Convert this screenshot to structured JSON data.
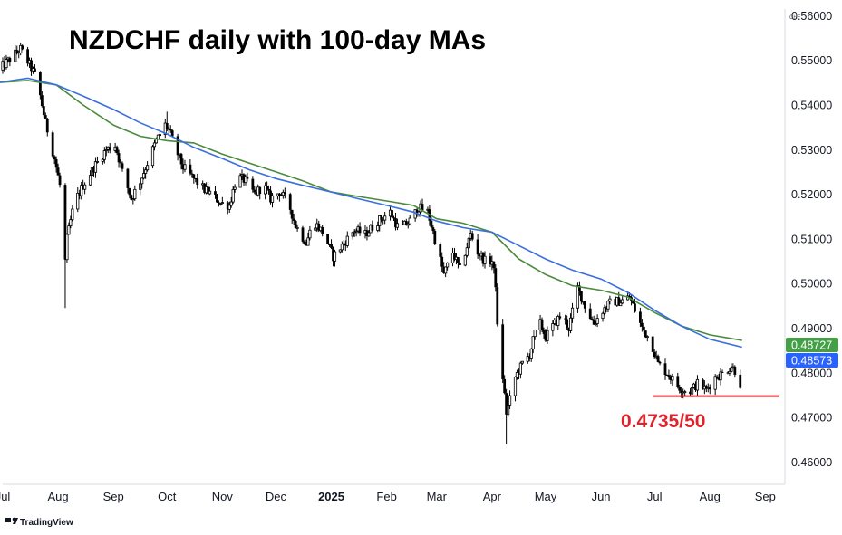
{
  "chart_data": {
    "type": "candlestick",
    "title": "NZDCHF daily with 100-day MAs",
    "price_unit": "CHF",
    "ylim": [
      0.455,
      0.5615
    ],
    "y_ticks": [
      "0.56000",
      "0.55000",
      "0.54000",
      "0.53000",
      "0.52000",
      "0.51000",
      "0.50000",
      "0.49000",
      "0.48000",
      "0.47000",
      "0.46000"
    ],
    "x_range": [
      "2024-07-01",
      "2025-09-12"
    ],
    "x_ticks": [
      {
        "date": "2024-07-01",
        "label": "Jul",
        "bold": false
      },
      {
        "date": "2024-08-01",
        "label": "Aug",
        "bold": false
      },
      {
        "date": "2024-09-01",
        "label": "Sep",
        "bold": false
      },
      {
        "date": "2024-10-01",
        "label": "Oct",
        "bold": false
      },
      {
        "date": "2024-11-01",
        "label": "Nov",
        "bold": false
      },
      {
        "date": "2024-12-01",
        "label": "Dec",
        "bold": false
      },
      {
        "date": "2025-01-01",
        "label": "2025",
        "bold": true
      },
      {
        "date": "2025-02-01",
        "label": "Feb",
        "bold": false
      },
      {
        "date": "2025-03-01",
        "label": "Mar",
        "bold": false
      },
      {
        "date": "2025-04-01",
        "label": "Apr",
        "bold": false
      },
      {
        "date": "2025-05-01",
        "label": "May",
        "bold": false
      },
      {
        "date": "2025-06-01",
        "label": "Jun",
        "bold": false
      },
      {
        "date": "2025-07-01",
        "label": "Jul",
        "bold": false
      },
      {
        "date": "2025-08-01",
        "label": "Aug",
        "bold": false
      },
      {
        "date": "2025-09-01",
        "label": "Sep",
        "bold": false
      }
    ],
    "price_path": [
      [
        "2024-06-28",
        0.5475
      ],
      [
        "2024-07-08",
        0.5515
      ],
      [
        "2024-07-11",
        0.5525
      ],
      [
        "2024-07-16",
        0.549
      ],
      [
        "2024-07-20",
        0.546
      ],
      [
        "2024-07-25",
        0.536
      ],
      [
        "2024-07-30",
        0.528
      ],
      [
        "2024-08-02",
        0.522
      ],
      [
        "2024-08-05",
        0.505
      ],
      [
        "2024-08-06",
        0.51
      ],
      [
        "2024-08-10",
        0.518
      ],
      [
        "2024-08-15",
        0.522
      ],
      [
        "2024-08-21",
        0.526
      ],
      [
        "2024-08-28",
        0.53
      ],
      [
        "2024-09-02",
        0.531
      ],
      [
        "2024-09-06",
        0.525
      ],
      [
        "2024-09-11",
        0.519
      ],
      [
        "2024-09-16",
        0.523
      ],
      [
        "2024-09-20",
        0.527
      ],
      [
        "2024-09-25",
        0.532
      ],
      [
        "2024-09-30",
        0.5355
      ],
      [
        "2024-10-02",
        0.5345
      ],
      [
        "2024-10-05",
        0.531
      ],
      [
        "2024-10-10",
        0.526
      ],
      [
        "2024-10-17",
        0.523
      ],
      [
        "2024-10-22",
        0.521
      ],
      [
        "2024-10-26",
        0.52
      ],
      [
        "2024-10-31",
        0.518
      ],
      [
        "2024-11-05",
        0.5175
      ],
      [
        "2024-11-09",
        0.524
      ],
      [
        "2024-11-14",
        0.523
      ],
      [
        "2024-11-19",
        0.52
      ],
      [
        "2024-11-24",
        0.522
      ],
      [
        "2024-11-28",
        0.519
      ],
      [
        "2024-12-03",
        0.5205
      ],
      [
        "2024-12-08",
        0.518
      ],
      [
        "2024-12-12",
        0.513
      ],
      [
        "2024-12-18",
        0.509
      ],
      [
        "2024-12-22",
        0.514
      ],
      [
        "2024-12-28",
        0.511
      ],
      [
        "2025-01-02",
        0.506
      ],
      [
        "2025-01-08",
        0.509
      ],
      [
        "2025-01-14",
        0.512
      ],
      [
        "2025-01-20",
        0.511
      ],
      [
        "2025-01-27",
        0.514
      ],
      [
        "2025-02-03",
        0.516
      ],
      [
        "2025-02-08",
        0.512
      ],
      [
        "2025-02-14",
        0.514
      ],
      [
        "2025-02-19",
        0.517
      ],
      [
        "2025-02-24",
        0.516
      ],
      [
        "2025-02-28",
        0.51
      ],
      [
        "2025-03-05",
        0.502
      ],
      [
        "2025-03-10",
        0.507
      ],
      [
        "2025-03-14",
        0.503
      ],
      [
        "2025-03-20",
        0.511
      ],
      [
        "2025-03-24",
        0.507
      ],
      [
        "2025-03-28",
        0.505
      ],
      [
        "2025-04-01",
        0.505
      ],
      [
        "2025-04-03",
        0.5
      ],
      [
        "2025-04-04",
        0.49
      ],
      [
        "2025-04-07",
        0.479
      ],
      [
        "2025-04-09",
        0.471
      ],
      [
        "2025-04-11",
        0.474
      ],
      [
        "2025-04-14",
        0.479
      ],
      [
        "2025-04-18",
        0.482
      ],
      [
        "2025-04-22",
        0.484
      ],
      [
        "2025-04-27",
        0.492
      ],
      [
        "2025-05-01",
        0.488
      ],
      [
        "2025-05-06",
        0.491
      ],
      [
        "2025-05-10",
        0.493
      ],
      [
        "2025-05-14",
        0.49
      ],
      [
        "2025-05-19",
        0.499
      ],
      [
        "2025-05-23",
        0.495
      ],
      [
        "2025-05-28",
        0.491
      ],
      [
        "2025-06-02",
        0.494
      ],
      [
        "2025-06-07",
        0.496
      ],
      [
        "2025-06-12",
        0.496
      ],
      [
        "2025-06-17",
        0.497
      ],
      [
        "2025-06-20",
        0.494
      ],
      [
        "2025-06-24",
        0.49
      ],
      [
        "2025-06-29",
        0.487
      ],
      [
        "2025-07-03",
        0.482
      ],
      [
        "2025-07-08",
        0.48
      ],
      [
        "2025-07-14",
        0.477
      ],
      [
        "2025-07-20",
        0.4755
      ],
      [
        "2025-07-25",
        0.4775
      ],
      [
        "2025-07-30",
        0.4762
      ],
      [
        "2025-08-04",
        0.479
      ],
      [
        "2025-08-09",
        0.48
      ],
      [
        "2025-08-13",
        0.4815
      ],
      [
        "2025-08-15",
        0.4805
      ],
      [
        "2025-08-18",
        0.4775
      ]
    ],
    "series": [
      {
        "name": "",
        "color": "#4a8a3c",
        "type": "moving-average",
        "points": [
          [
            "2024-06-28",
            0.545
          ],
          [
            "2024-07-15",
            0.5455
          ],
          [
            "2024-07-31",
            0.5445
          ],
          [
            "2024-08-15",
            0.54
          ],
          [
            "2024-09-01",
            0.5355
          ],
          [
            "2024-09-16",
            0.533
          ],
          [
            "2024-10-01",
            0.532
          ],
          [
            "2024-10-16",
            0.5315
          ],
          [
            "2024-11-01",
            0.529
          ],
          [
            "2024-11-16",
            0.527
          ],
          [
            "2024-12-01",
            0.525
          ],
          [
            "2024-12-16",
            0.523
          ],
          [
            "2025-01-01",
            0.5205
          ],
          [
            "2025-01-16",
            0.5195
          ],
          [
            "2025-02-01",
            0.5185
          ],
          [
            "2025-02-16",
            0.5175
          ],
          [
            "2025-03-01",
            0.5145
          ],
          [
            "2025-03-16",
            0.5135
          ],
          [
            "2025-04-01",
            0.5115
          ],
          [
            "2025-04-16",
            0.5055
          ],
          [
            "2025-05-01",
            0.502
          ],
          [
            "2025-05-16",
            0.4995
          ],
          [
            "2025-06-01",
            0.4985
          ],
          [
            "2025-06-16",
            0.497
          ],
          [
            "2025-07-01",
            0.4935
          ],
          [
            "2025-07-16",
            0.4905
          ],
          [
            "2025-08-01",
            0.4885
          ],
          [
            "2025-08-19",
            0.48727
          ]
        ]
      },
      {
        "name": "",
        "color": "#3a6fe0",
        "type": "moving-average",
        "points": [
          [
            "2024-06-28",
            0.545
          ],
          [
            "2024-07-15",
            0.546
          ],
          [
            "2024-07-31",
            0.5445
          ],
          [
            "2024-08-15",
            0.542
          ],
          [
            "2024-09-01",
            0.539
          ],
          [
            "2024-09-16",
            0.536
          ],
          [
            "2024-10-01",
            0.5335
          ],
          [
            "2024-10-16",
            0.5305
          ],
          [
            "2024-11-01",
            0.528
          ],
          [
            "2024-11-16",
            0.5255
          ],
          [
            "2024-12-01",
            0.5235
          ],
          [
            "2024-12-16",
            0.522
          ],
          [
            "2025-01-01",
            0.5205
          ],
          [
            "2025-01-16",
            0.519
          ],
          [
            "2025-02-01",
            0.5175
          ],
          [
            "2025-02-16",
            0.516
          ],
          [
            "2025-03-01",
            0.514
          ],
          [
            "2025-03-16",
            0.5125
          ],
          [
            "2025-04-01",
            0.5115
          ],
          [
            "2025-04-16",
            0.5085
          ],
          [
            "2025-05-01",
            0.5055
          ],
          [
            "2025-05-16",
            0.503
          ],
          [
            "2025-06-01",
            0.501
          ],
          [
            "2025-06-16",
            0.498
          ],
          [
            "2025-07-01",
            0.494
          ],
          [
            "2025-07-16",
            0.4905
          ],
          [
            "2025-08-01",
            0.4875
          ],
          [
            "2025-08-19",
            0.48573
          ]
        ]
      }
    ],
    "price_tags": [
      {
        "value": 0.48727,
        "label": "0.48727",
        "color": "#43a047"
      },
      {
        "value": 0.48573,
        "label": "0.48573",
        "color": "#2962ff"
      }
    ],
    "support_line": {
      "value": 0.47475,
      "from": "2025-06-30",
      "to": "2025-09-09",
      "color": "#e0222a"
    },
    "annotations": [
      {
        "text": "0.4735/50",
        "color": "#e0222a"
      }
    ],
    "grid": false,
    "legend": "none"
  },
  "branding": {
    "name": "TradingView"
  }
}
